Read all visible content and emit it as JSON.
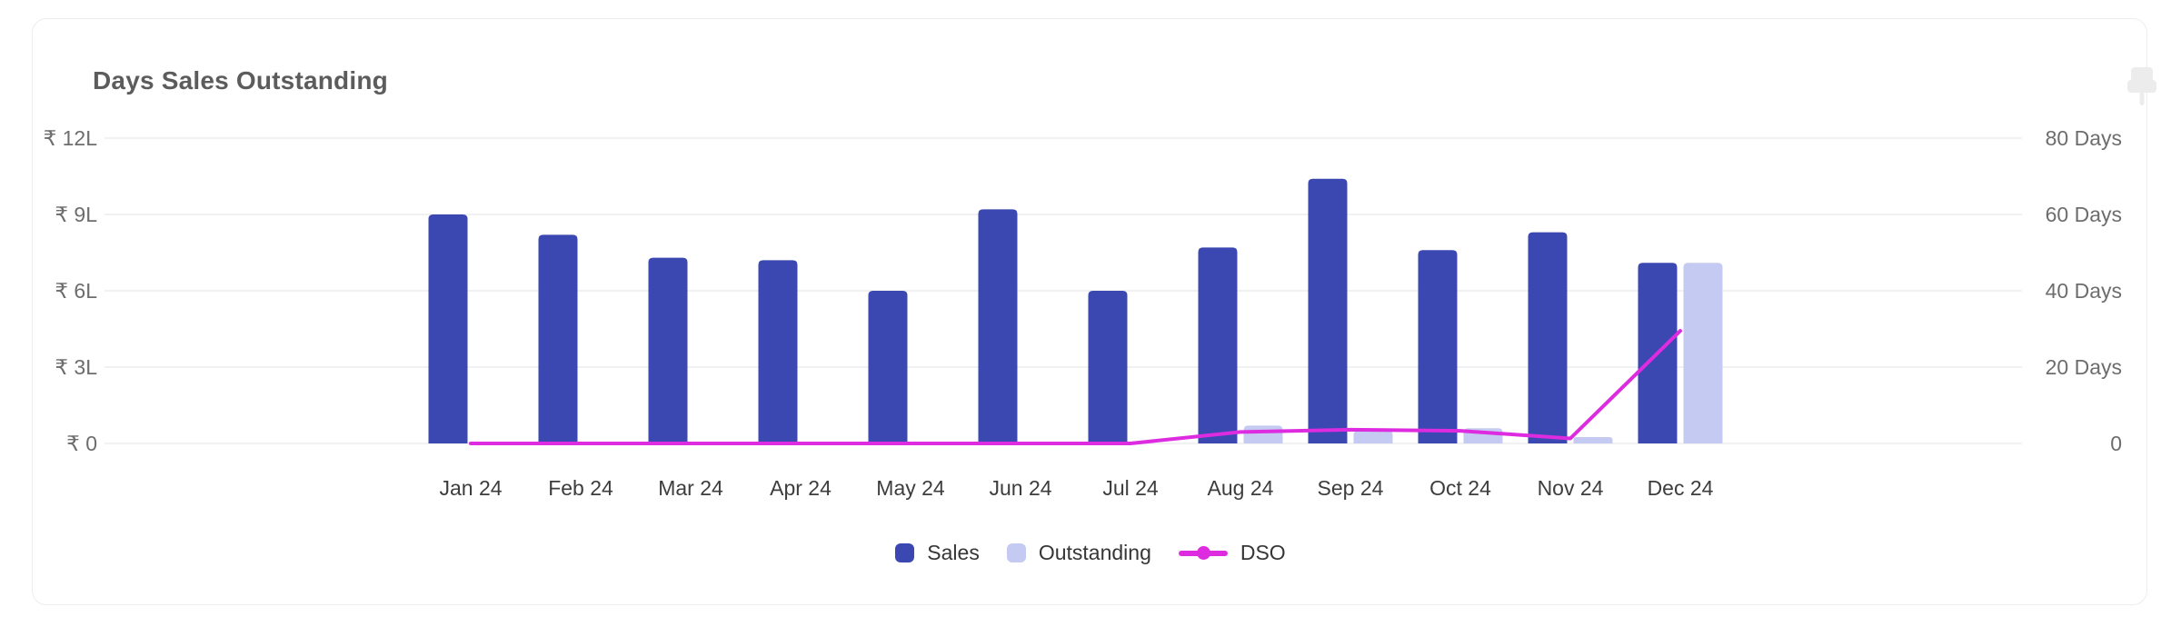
{
  "card": {
    "title": "Days Sales Outstanding"
  },
  "chart_data": {
    "type": "bar",
    "subtype": "grouped-bars-with-line-overlay",
    "title": "Days Sales Outstanding",
    "categories": [
      "Jan 24",
      "Feb 24",
      "Mar 24",
      "Apr 24",
      "May 24",
      "Jun 24",
      "Jul 24",
      "Aug 24",
      "Sep 24",
      "Oct 24",
      "Nov 24",
      "Dec 24"
    ],
    "series": [
      {
        "name": "Sales",
        "type": "bar",
        "axis": "left",
        "unit": "lakh ₹",
        "color": "#3b48b2",
        "values": [
          9.0,
          8.2,
          7.3,
          7.2,
          6.0,
          9.2,
          6.0,
          7.7,
          10.4,
          7.6,
          8.3,
          7.1
        ]
      },
      {
        "name": "Outstanding",
        "type": "bar",
        "axis": "left",
        "unit": "lakh ₹",
        "color": "#c4caf1",
        "values": [
          0,
          0,
          0,
          0,
          0,
          0,
          0,
          0.7,
          0.5,
          0.6,
          0.25,
          7.1
        ]
      },
      {
        "name": "DSO",
        "type": "line",
        "axis": "right",
        "unit": "days",
        "color": "#dd2be0",
        "values": [
          0,
          0,
          0,
          0,
          0,
          0,
          0,
          3,
          3.6,
          3.3,
          1.3,
          29.5
        ]
      }
    ],
    "left_axis": {
      "min": 0,
      "max": 12,
      "tick_labels_top_to_bottom": [
        "₹ 12L",
        "₹ 9L",
        "₹ 6L",
        "₹ 3L",
        "₹ 0"
      ]
    },
    "right_axis": {
      "min": 0,
      "max": 80,
      "tick_labels_top_to_bottom": [
        "80 Days",
        "60 Days",
        "40 Days",
        "20 Days",
        "0"
      ]
    },
    "grid": true,
    "legend_position": "bottom"
  },
  "colors": {
    "grid": "#f1f1f4",
    "axis_tick_label": "#6d6d6d",
    "x_tick_label": "#3d3d3d",
    "title": "#5c5c5c",
    "card_border": "#ededf0",
    "pin_icon": "#ececec",
    "legend_text": "#363636"
  }
}
